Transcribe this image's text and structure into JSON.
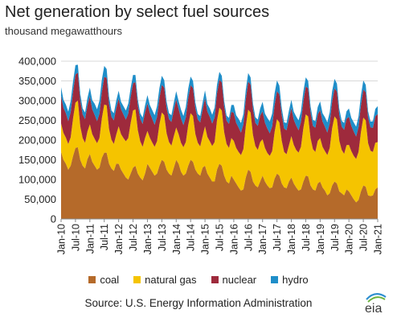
{
  "header": {
    "title": "Net generation by select fuel sources",
    "subtitle": "thousand megawatthours"
  },
  "footer": {
    "source": "Source:  U.S. Energy Information Administration",
    "logo_text": "eia"
  },
  "chart_data": {
    "type": "area",
    "stacked": true,
    "title": "Net generation by select fuel sources",
    "ylabel": "thousand megawatthours",
    "ylim": [
      0,
      400000
    ],
    "yticks": [
      "400,000",
      "350,000",
      "300,000",
      "250,000",
      "200,000",
      "150,000",
      "100,000",
      "50,000",
      "0"
    ],
    "xticks": [
      "Jan-10",
      "Jul-10",
      "Jan-11",
      "Jul-11",
      "Jan-12",
      "Jul-12",
      "Jan-13",
      "Jul-13",
      "Jan-14",
      "Jul-14",
      "Jan-15",
      "Jul-15",
      "Jan-16",
      "Jul-16",
      "Jan-17",
      "Jul-17",
      "Jan-18",
      "Jul-18",
      "Jan-19",
      "Jul-19",
      "Jan-20",
      "Jul-20",
      "Jan-21"
    ],
    "legend_position": "bottom",
    "colors": {
      "coal": "#b56a2a",
      "natural gas": "#f5c400",
      "nuclear": "#9e2a3c",
      "hydro": "#1f8ec9"
    },
    "series": [
      {
        "name": "coal",
        "values": [
          170000,
          150000,
          140000,
          125000,
          135000,
          160000,
          180000,
          182000,
          150000,
          135000,
          128000,
          152000,
          165000,
          145000,
          135000,
          125000,
          130000,
          155000,
          168000,
          168000,
          140000,
          128000,
          122000,
          140000,
          140000,
          125000,
          115000,
          105000,
          100000,
          115000,
          130000,
          135000,
          115000,
          105000,
          98000,
          115000,
          140000,
          130000,
          120000,
          110000,
          115000,
          135000,
          150000,
          145000,
          125000,
          115000,
          110000,
          130000,
          150000,
          140000,
          120000,
          110000,
          115000,
          135000,
          150000,
          145000,
          125000,
          115000,
          110000,
          130000,
          135000,
          115000,
          105000,
          95000,
          95000,
          125000,
          140000,
          135000,
          110000,
          95000,
          90000,
          110000,
          100000,
          90000,
          80000,
          72000,
          75000,
          105000,
          125000,
          120000,
          95000,
          85000,
          80000,
          95000,
          110000,
          95000,
          85000,
          78000,
          80000,
          102000,
          115000,
          110000,
          90000,
          80000,
          78000,
          95000,
          105000,
          90000,
          80000,
          72000,
          75000,
          95000,
          110000,
          108000,
          85000,
          75000,
          72000,
          90000,
          95000,
          80000,
          72000,
          60000,
          65000,
          85000,
          95000,
          90000,
          70000,
          65000,
          60000,
          75000,
          70000,
          60000,
          50000,
          42000,
          48000,
          70000,
          85000,
          82000,
          60000,
          58000,
          60000,
          75000,
          80000
        ]
      },
      {
        "name": "natural gas",
        "values": [
          72000,
          68000,
          66000,
          65000,
          72000,
          95000,
          115000,
          118000,
          85000,
          70000,
          65000,
          70000,
          75000,
          70000,
          68000,
          67000,
          75000,
          100000,
          122000,
          120000,
          88000,
          73000,
          68000,
          74000,
          95000,
          90000,
          90000,
          92000,
          105000,
          128000,
          145000,
          143000,
          110000,
          92000,
          85000,
          90000,
          83000,
          76000,
          74000,
          73000,
          82000,
          105000,
          120000,
          118000,
          92000,
          80000,
          76000,
          80000,
          82000,
          75000,
          73000,
          72000,
          80000,
          103000,
          118000,
          116000,
          90000,
          78000,
          74000,
          80000,
          100000,
          93000,
          92000,
          90000,
          100000,
          125000,
          142000,
          140000,
          110000,
          95000,
          90000,
          95000,
          98000,
          90000,
          90000,
          90000,
          102000,
          130000,
          152000,
          150000,
          118000,
          100000,
          95000,
          100000,
          92000,
          85000,
          82000,
          82000,
          92000,
          118000,
          138000,
          135000,
          108000,
          90000,
          86000,
          92000,
          105000,
          98000,
          95000,
          96000,
          108000,
          135000,
          155000,
          152000,
          120000,
          102000,
          98000,
          108000,
          110000,
          103000,
          100000,
          102000,
          115000,
          145000,
          165000,
          162000,
          128000,
          110000,
          105000,
          112000,
          118000,
          112000,
          110000,
          110000,
          122000,
          150000,
          172000,
          168000,
          132000,
          115000,
          110000,
          118000,
          115000
        ]
      },
      {
        "name": "nuclear",
        "values": [
          70000,
          64000,
          62000,
          58000,
          64000,
          68000,
          71000,
          71000,
          66000,
          60000,
          60000,
          66000,
          71000,
          63000,
          61000,
          56000,
          62000,
          67000,
          70000,
          70000,
          64000,
          58000,
          60000,
          66000,
          70000,
          63000,
          60000,
          55000,
          62000,
          66000,
          69000,
          69000,
          63000,
          57000,
          58000,
          65000,
          70000,
          63000,
          60000,
          56000,
          62000,
          67000,
          70000,
          70000,
          64000,
          58000,
          60000,
          66000,
          71000,
          64000,
          62000,
          56000,
          63000,
          68000,
          71000,
          71000,
          65000,
          59000,
          61000,
          67000,
          71000,
          64000,
          62000,
          57000,
          63000,
          68000,
          71000,
          71000,
          65000,
          59000,
          61000,
          67000,
          71000,
          64000,
          62000,
          57000,
          63000,
          68000,
          71000,
          71000,
          65000,
          59000,
          61000,
          67000,
          71000,
          64000,
          62000,
          57000,
          63000,
          68000,
          71000,
          71000,
          65000,
          59000,
          61000,
          67000,
          71000,
          64000,
          62000,
          57000,
          63000,
          68000,
          71000,
          71000,
          65000,
          59000,
          61000,
          67000,
          71000,
          64000,
          62000,
          57000,
          63000,
          68000,
          71000,
          71000,
          65000,
          59000,
          61000,
          67000,
          71000,
          64000,
          62000,
          57000,
          63000,
          68000,
          71000,
          71000,
          65000,
          59000,
          61000,
          67000,
          71000
        ]
      },
      {
        "name": "hydro",
        "values": [
          22000,
          20000,
          22000,
          24000,
          28000,
          26000,
          24000,
          20000,
          16000,
          15000,
          17000,
          19000,
          22000,
          23000,
          28000,
          30000,
          33000,
          31000,
          28000,
          22000,
          18000,
          16000,
          18000,
          20000,
          20000,
          19000,
          21000,
          23000,
          25000,
          23000,
          21000,
          18000,
          15000,
          14000,
          16000,
          18000,
          21000,
          20000,
          22000,
          24000,
          27000,
          25000,
          23000,
          19000,
          16000,
          15000,
          17000,
          19000,
          21000,
          20000,
          22000,
          23000,
          26000,
          24000,
          22000,
          18000,
          15000,
          14000,
          16000,
          18000,
          20000,
          19000,
          21000,
          22000,
          24000,
          22000,
          20000,
          17000,
          14000,
          13000,
          15000,
          17000,
          20000,
          19000,
          22000,
          24000,
          26000,
          24000,
          22000,
          18000,
          15000,
          14000,
          16000,
          18000,
          24000,
          23000,
          27000,
          30000,
          32000,
          30000,
          27000,
          22000,
          18000,
          16000,
          18000,
          21000,
          21000,
          20000,
          23000,
          25000,
          27000,
          25000,
          23000,
          19000,
          16000,
          15000,
          17000,
          19000,
          22000,
          21000,
          24000,
          26000,
          28000,
          26000,
          24000,
          20000,
          16000,
          15000,
          17000,
          19000,
          21000,
          20000,
          23000,
          25000,
          27000,
          25000,
          23000,
          19000,
          16000,
          15000,
          17000,
          19000,
          20000
        ]
      }
    ]
  }
}
